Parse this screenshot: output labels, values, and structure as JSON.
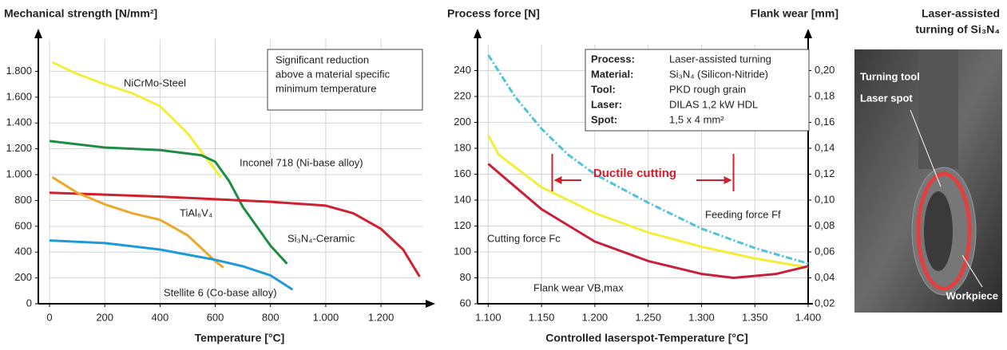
{
  "chart_data": [
    {
      "type": "line",
      "title": "Mechanical strength [N/mm²]",
      "x_label": "Temperature [°C]",
      "xlim": [
        0,
        1350
      ],
      "ylim": [
        0,
        2050
      ],
      "grid": true,
      "xticks": [
        0,
        200,
        400,
        600,
        800,
        {
          "value": 1000,
          "label": "1.000"
        },
        {
          "value": 1200,
          "label": "1.200"
        }
      ],
      "yticks": [
        0,
        200,
        400,
        600,
        800,
        {
          "value": 1000,
          "label": "1.000"
        },
        {
          "value": 1200,
          "label": "1.200"
        },
        {
          "value": 1400,
          "label": "1.400"
        },
        {
          "value": 1600,
          "label": "1.600"
        },
        {
          "value": 1800,
          "label": "1.800"
        }
      ],
      "annotation": [
        "Significant reduction",
        "above a material specific",
        "minimum temperature"
      ],
      "series": [
        {
          "name": "NiCrMo-Steel",
          "color": "#f2ee3a",
          "x": [
            10,
            100,
            200,
            300,
            400,
            500,
            560,
            620
          ],
          "values": [
            1870,
            1780,
            1700,
            1630,
            1530,
            1320,
            1150,
            980
          ]
        },
        {
          "name": "Inconel 718 (Ni-base alloy)",
          "color": "#1e8c45",
          "x": [
            0,
            200,
            400,
            550,
            600,
            650,
            700,
            800,
            860
          ],
          "values": [
            1260,
            1210,
            1190,
            1150,
            1100,
            950,
            750,
            450,
            310
          ]
        },
        {
          "name": "Si₃N₄-Ceramic",
          "color": "#d0202e",
          "x": [
            0,
            400,
            800,
            1000,
            1100,
            1200,
            1280,
            1340
          ],
          "values": [
            860,
            830,
            790,
            760,
            700,
            580,
            420,
            210
          ]
        },
        {
          "name": "TiAl₆V₄",
          "color": "#eaa92a",
          "x": [
            10,
            100,
            200,
            300,
            400,
            500,
            600,
            630
          ],
          "values": [
            980,
            860,
            770,
            700,
            650,
            530,
            330,
            280
          ]
        },
        {
          "name": "Stellite 6 (Co-base alloy)",
          "color": "#1e9bd7",
          "x": [
            0,
            200,
            400,
            500,
            600,
            700,
            800,
            880
          ],
          "values": [
            490,
            470,
            420,
            380,
            340,
            290,
            220,
            110
          ]
        }
      ]
    },
    {
      "type": "line",
      "title": "Process force [N]",
      "y2_title": "Flank wear [mm]",
      "x_label": "Controlled laserspot-Temperature [°C]",
      "xlim": [
        1090,
        1400
      ],
      "ylim": [
        60,
        260
      ],
      "y2lim": [
        0.02,
        0.22
      ],
      "grid": true,
      "xticks": [
        {
          "value": 1100,
          "label": "1.100"
        },
        {
          "value": 1150,
          "label": "1.150"
        },
        {
          "value": 1200,
          "label": "1.200"
        },
        {
          "value": 1250,
          "label": "1.250"
        },
        {
          "value": 1300,
          "label": "1.300"
        },
        {
          "value": 1350,
          "label": "1.350"
        },
        {
          "value": 1400,
          "label": "1.400"
        }
      ],
      "yticks": [
        60,
        80,
        100,
        120,
        140,
        160,
        180,
        200,
        220,
        240
      ],
      "y2ticks": [
        {
          "value": 0.02,
          "label": "0,02"
        },
        {
          "value": 0.04,
          "label": "0,04"
        },
        {
          "value": 0.06,
          "label": "0,06"
        },
        {
          "value": 0.08,
          "label": "0,08"
        },
        {
          "value": 0.1,
          "label": "0,10"
        },
        {
          "value": 0.12,
          "label": "0,12"
        },
        {
          "value": 0.14,
          "label": "0,14"
        },
        {
          "value": 0.16,
          "label": "0,16"
        },
        {
          "value": 0.18,
          "label": "0,18"
        },
        {
          "value": 0.2,
          "label": "0,20"
        }
      ],
      "annotation": "Ductile cutting",
      "info": [
        [
          "Process:",
          "Laser-assisted turning"
        ],
        [
          "Material:",
          "Si₃N₄ (Silicon-Nitride)"
        ],
        [
          "Tool:",
          "PKD rough grain"
        ],
        [
          "Laser:",
          "DILAS 1,2 kW HDL"
        ],
        [
          "Spot:",
          "1,5 x 4 mm²"
        ]
      ],
      "series": [
        {
          "name": "Feeding force Ff",
          "color": "#4fc3d9",
          "dash": true,
          "x": [
            1100,
            1125,
            1150,
            1175,
            1200,
            1250,
            1300,
            1350,
            1400
          ],
          "values": [
            252,
            220,
            195,
            175,
            160,
            138,
            118,
            103,
            91
          ]
        },
        {
          "name": "Cutting force Fc",
          "color": "#f2ee3a",
          "x": [
            1100,
            1110,
            1150,
            1200,
            1250,
            1300,
            1350,
            1400
          ],
          "values": [
            190,
            175,
            150,
            130,
            115,
            104,
            95,
            88
          ]
        },
        {
          "name": "Flank wear VB,max",
          "color": "#c8203a",
          "axis": "y2",
          "x": [
            1100,
            1150,
            1200,
            1250,
            1300,
            1330,
            1370,
            1400
          ],
          "values": [
            0.128,
            0.093,
            0.068,
            0.053,
            0.043,
            0.04,
            0.043,
            0.049
          ]
        }
      ]
    }
  ],
  "photo": {
    "title": [
      "Laser-assisted",
      "turning of Si₃N₄"
    ],
    "labels": [
      "Turning tool",
      "Laser spot",
      "Workpiece"
    ]
  }
}
